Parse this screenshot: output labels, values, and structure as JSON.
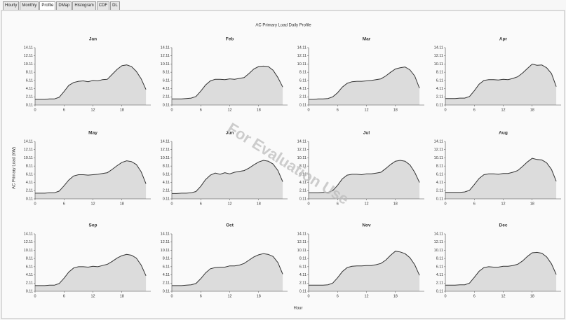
{
  "ui": {
    "tabs": [
      "Hourly",
      "Monthly",
      "Profile",
      "DMap",
      "Histogram",
      "CDF",
      "DL"
    ],
    "active_tab_index": 2,
    "title": "AC Primary Load Daily Profile",
    "y_label": "AC Primary Load (kW)",
    "x_label": "Hour",
    "watermark": "For Evaluation Use"
  },
  "chart_data": [
    {
      "type": "area",
      "title": "Jan",
      "x": [
        0,
        1,
        2,
        3,
        4,
        5,
        6,
        7,
        8,
        9,
        10,
        11,
        12,
        13,
        14,
        15,
        16,
        17,
        18,
        19,
        20,
        21,
        22,
        23
      ],
      "values": [
        1.5,
        1.5,
        1.5,
        1.6,
        1.6,
        2.0,
        3.4,
        4.9,
        5.6,
        5.9,
        6.0,
        5.8,
        6.1,
        6.0,
        6.3,
        6.4,
        7.6,
        8.8,
        9.7,
        9.9,
        9.5,
        8.3,
        6.5,
        3.9
      ],
      "xlim": [
        0,
        24
      ],
      "xticks": [
        0,
        6,
        12,
        18
      ],
      "ylim": [
        0.11,
        14.11
      ],
      "yticks": [
        0.11,
        2.11,
        4.11,
        6.11,
        8.11,
        10.11,
        12.11,
        14.11
      ],
      "color": "#333333",
      "fill": "#dcdcdc"
    },
    {
      "type": "area",
      "title": "Feb",
      "x": [
        0,
        1,
        2,
        3,
        4,
        5,
        6,
        7,
        8,
        9,
        10,
        11,
        12,
        13,
        14,
        15,
        16,
        17,
        18,
        19,
        20,
        21,
        22,
        23
      ],
      "values": [
        1.6,
        1.6,
        1.6,
        1.7,
        1.8,
        2.2,
        3.5,
        5.0,
        6.0,
        6.4,
        6.4,
        6.3,
        6.5,
        6.4,
        6.6,
        6.8,
        7.8,
        8.9,
        9.5,
        9.6,
        9.5,
        8.6,
        6.8,
        4.5
      ],
      "xlim": [
        0,
        24
      ],
      "xticks": [
        0,
        6,
        12,
        18
      ],
      "ylim": [
        0.11,
        14.11
      ],
      "yticks": [
        0.11,
        2.11,
        4.11,
        6.11,
        8.11,
        10.11,
        12.11,
        14.11
      ],
      "color": "#333333",
      "fill": "#dcdcdc"
    },
    {
      "type": "area",
      "title": "Mar",
      "x": [
        0,
        1,
        2,
        3,
        4,
        5,
        6,
        7,
        8,
        9,
        10,
        11,
        12,
        13,
        14,
        15,
        16,
        17,
        18,
        19,
        20,
        21,
        22,
        23
      ],
      "values": [
        1.5,
        1.5,
        1.6,
        1.6,
        1.7,
        2.1,
        3.1,
        4.5,
        5.4,
        5.8,
        5.9,
        5.9,
        6.0,
        6.1,
        6.3,
        6.5,
        7.2,
        8.1,
        8.9,
        9.2,
        9.4,
        8.7,
        7.2,
        4.2
      ],
      "xlim": [
        0,
        24
      ],
      "xticks": [
        0,
        6,
        12,
        18
      ],
      "ylim": [
        0.11,
        14.11
      ],
      "yticks": [
        0.11,
        2.11,
        4.11,
        6.11,
        8.11,
        10.11,
        12.11,
        14.11
      ],
      "color": "#333333",
      "fill": "#dcdcdc"
    },
    {
      "type": "area",
      "title": "Apr",
      "x": [
        0,
        1,
        2,
        3,
        4,
        5,
        6,
        7,
        8,
        9,
        10,
        11,
        12,
        13,
        14,
        15,
        16,
        17,
        18,
        19,
        20,
        21,
        22,
        23
      ],
      "values": [
        1.7,
        1.7,
        1.7,
        1.8,
        1.8,
        2.2,
        3.6,
        5.2,
        6.1,
        6.3,
        6.3,
        6.2,
        6.4,
        6.3,
        6.6,
        7.0,
        7.9,
        9.0,
        10.1,
        9.8,
        9.9,
        9.2,
        7.8,
        4.6
      ],
      "xlim": [
        0,
        24
      ],
      "xticks": [
        0,
        6,
        12,
        18
      ],
      "ylim": [
        0.11,
        14.11
      ],
      "yticks": [
        0.11,
        2.11,
        4.11,
        6.11,
        8.11,
        10.11,
        12.11,
        14.11
      ],
      "color": "#333333",
      "fill": "#dcdcdc"
    },
    {
      "type": "area",
      "title": "May",
      "x": [
        0,
        1,
        2,
        3,
        4,
        5,
        6,
        7,
        8,
        9,
        10,
        11,
        12,
        13,
        14,
        15,
        16,
        17,
        18,
        19,
        20,
        21,
        22,
        23
      ],
      "values": [
        1.5,
        1.5,
        1.5,
        1.6,
        1.6,
        2.0,
        3.3,
        4.7,
        5.7,
        6.0,
        6.0,
        5.9,
        6.0,
        6.1,
        6.3,
        6.5,
        7.3,
        8.2,
        9.0,
        9.4,
        9.2,
        8.5,
        6.7,
        3.8
      ],
      "xlim": [
        0,
        24
      ],
      "xticks": [
        0,
        6,
        12,
        18
      ],
      "ylim": [
        0.11,
        14.11
      ],
      "yticks": [
        0.11,
        2.11,
        4.11,
        6.11,
        8.11,
        10.11,
        12.11,
        14.11
      ],
      "color": "#333333",
      "fill": "#dcdcdc"
    },
    {
      "type": "area",
      "title": "Jun",
      "x": [
        0,
        1,
        2,
        3,
        4,
        5,
        6,
        7,
        8,
        9,
        10,
        11,
        12,
        13,
        14,
        15,
        16,
        17,
        18,
        19,
        20,
        21,
        22,
        23
      ],
      "values": [
        1.4,
        1.4,
        1.5,
        1.5,
        1.6,
        1.9,
        3.2,
        4.8,
        5.9,
        6.4,
        6.1,
        6.5,
        6.2,
        6.6,
        6.8,
        7.0,
        7.6,
        8.4,
        9.1,
        9.5,
        9.3,
        8.6,
        7.0,
        4.3
      ],
      "xlim": [
        0,
        24
      ],
      "xticks": [
        0,
        6,
        12,
        18
      ],
      "ylim": [
        0.11,
        14.11
      ],
      "yticks": [
        0.11,
        2.11,
        4.11,
        6.11,
        8.11,
        10.11,
        12.11,
        14.11
      ],
      "color": "#333333",
      "fill": "#dcdcdc"
    },
    {
      "type": "area",
      "title": "Jul",
      "x": [
        0,
        1,
        2,
        3,
        4,
        5,
        6,
        7,
        8,
        9,
        10,
        11,
        12,
        13,
        14,
        15,
        16,
        17,
        18,
        19,
        20,
        21,
        22,
        23
      ],
      "values": [
        1.6,
        1.6,
        1.6,
        1.7,
        1.7,
        2.1,
        3.4,
        5.0,
        5.9,
        6.1,
        6.1,
        6.0,
        6.2,
        6.2,
        6.4,
        6.6,
        7.5,
        8.5,
        9.3,
        9.5,
        9.3,
        8.4,
        6.6,
        4.1
      ],
      "xlim": [
        0,
        24
      ],
      "xticks": [
        0,
        6,
        12,
        18
      ],
      "ylim": [
        0.11,
        14.11
      ],
      "yticks": [
        0.11,
        2.11,
        4.11,
        6.11,
        8.11,
        10.11,
        12.11,
        14.11
      ],
      "color": "#333333",
      "fill": "#dcdcdc"
    },
    {
      "type": "area",
      "title": "Aug",
      "x": [
        0,
        1,
        2,
        3,
        4,
        5,
        6,
        7,
        8,
        9,
        10,
        11,
        12,
        13,
        14,
        15,
        16,
        17,
        18,
        19,
        20,
        21,
        22,
        23
      ],
      "values": [
        1.7,
        1.7,
        1.7,
        1.7,
        1.8,
        2.2,
        3.6,
        5.1,
        6.0,
        6.2,
        6.2,
        6.1,
        6.3,
        6.3,
        6.6,
        7.0,
        8.0,
        9.1,
        10.0,
        9.7,
        9.6,
        8.9,
        7.3,
        4.4
      ],
      "xlim": [
        0,
        24
      ],
      "xticks": [
        0,
        6,
        12,
        18
      ],
      "ylim": [
        0.11,
        14.11
      ],
      "yticks": [
        0.11,
        2.11,
        4.11,
        6.11,
        8.11,
        10.11,
        12.11,
        14.11
      ],
      "color": "#333333",
      "fill": "#dcdcdc"
    },
    {
      "type": "area",
      "title": "Sep",
      "x": [
        0,
        1,
        2,
        3,
        4,
        5,
        6,
        7,
        8,
        9,
        10,
        11,
        12,
        13,
        14,
        15,
        16,
        17,
        18,
        19,
        20,
        21,
        22,
        23
      ],
      "values": [
        1.5,
        1.5,
        1.5,
        1.6,
        1.6,
        2.0,
        3.3,
        4.8,
        5.8,
        6.1,
        6.1,
        6.0,
        6.2,
        6.1,
        6.4,
        6.7,
        7.4,
        8.2,
        8.8,
        9.1,
        8.9,
        8.2,
        6.5,
        3.9
      ],
      "xlim": [
        0,
        24
      ],
      "xticks": [
        0,
        6,
        12,
        18
      ],
      "ylim": [
        0.11,
        14.11
      ],
      "yticks": [
        0.11,
        2.11,
        4.11,
        6.11,
        8.11,
        10.11,
        12.11,
        14.11
      ],
      "color": "#333333",
      "fill": "#dcdcdc"
    },
    {
      "type": "area",
      "title": "Oct",
      "x": [
        0,
        1,
        2,
        3,
        4,
        5,
        6,
        7,
        8,
        9,
        10,
        11,
        12,
        13,
        14,
        15,
        16,
        17,
        18,
        19,
        20,
        21,
        22,
        23
      ],
      "values": [
        1.5,
        1.5,
        1.5,
        1.6,
        1.7,
        2.0,
        3.2,
        4.6,
        5.6,
        5.9,
        6.0,
        6.0,
        6.3,
        6.3,
        6.5,
        6.9,
        7.7,
        8.5,
        9.0,
        9.3,
        9.1,
        8.6,
        7.1,
        4.3
      ],
      "xlim": [
        0,
        24
      ],
      "xticks": [
        0,
        6,
        12,
        18
      ],
      "ylim": [
        0.11,
        14.11
      ],
      "yticks": [
        0.11,
        2.11,
        4.11,
        6.11,
        8.11,
        10.11,
        12.11,
        14.11
      ],
      "color": "#333333",
      "fill": "#dcdcdc"
    },
    {
      "type": "area",
      "title": "Nov",
      "x": [
        0,
        1,
        2,
        3,
        4,
        5,
        6,
        7,
        8,
        9,
        10,
        11,
        12,
        13,
        14,
        15,
        16,
        17,
        18,
        19,
        20,
        21,
        22,
        23
      ],
      "values": [
        1.6,
        1.6,
        1.6,
        1.6,
        1.7,
        2.1,
        3.4,
        4.9,
        5.9,
        6.2,
        6.3,
        6.3,
        6.4,
        6.4,
        6.6,
        6.9,
        7.7,
        8.9,
        9.9,
        9.7,
        9.3,
        8.3,
        6.6,
        4.0
      ],
      "xlim": [
        0,
        24
      ],
      "xticks": [
        0,
        6,
        12,
        18
      ],
      "ylim": [
        0.11,
        14.11
      ],
      "yticks": [
        0.11,
        2.11,
        4.11,
        6.11,
        8.11,
        10.11,
        12.11,
        14.11
      ],
      "color": "#333333",
      "fill": "#dcdcdc"
    },
    {
      "type": "area",
      "title": "Dec",
      "x": [
        0,
        1,
        2,
        3,
        4,
        5,
        6,
        7,
        8,
        9,
        10,
        11,
        12,
        13,
        14,
        15,
        16,
        17,
        18,
        19,
        20,
        21,
        22,
        23
      ],
      "values": [
        1.6,
        1.6,
        1.6,
        1.7,
        1.7,
        2.1,
        3.5,
        5.0,
        5.9,
        6.1,
        6.0,
        6.0,
        6.2,
        6.2,
        6.4,
        6.7,
        7.5,
        8.6,
        9.5,
        9.6,
        9.4,
        8.5,
        6.8,
        4.2
      ],
      "xlim": [
        0,
        24
      ],
      "xticks": [
        0,
        6,
        12,
        18
      ],
      "ylim": [
        0.11,
        14.11
      ],
      "yticks": [
        0.11,
        2.11,
        4.11,
        6.11,
        8.11,
        10.11,
        12.11,
        14.11
      ],
      "color": "#333333",
      "fill": "#dcdcdc"
    }
  ]
}
